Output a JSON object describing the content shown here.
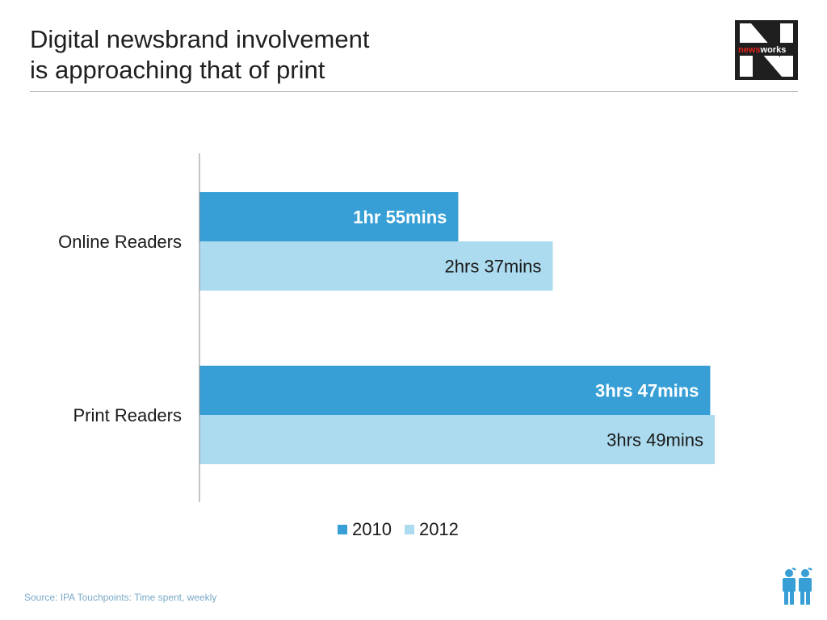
{
  "header": {
    "title_line1": "Digital newsbrand involvement",
    "title_line2": "is approaching that of print"
  },
  "logo": {
    "text_part1": "news",
    "text_part2": "works",
    "icon": "newsworks-n-logo-icon"
  },
  "colors": {
    "series_2010": "#379fd6",
    "series_2012": "#acdaee",
    "logo_bg": "#1f1f1f",
    "logo_accent": "#e2231a",
    "figures": "#379fd6",
    "axis": "#8a8a8a",
    "rule": "#b3b3b3"
  },
  "chart_data": {
    "type": "bar",
    "orientation": "horizontal",
    "categories": [
      "Online Readers",
      "Print Readers"
    ],
    "unit": "minutes per week",
    "series": [
      {
        "name": "2010",
        "values": [
          115,
          227
        ],
        "labels": [
          "1hr 55mins",
          "3hrs 47mins"
        ],
        "label_bold": true,
        "label_color": "#ffffff"
      },
      {
        "name": "2012",
        "values": [
          157,
          229
        ],
        "labels": [
          "2hrs 37mins",
          "3hrs 49mins"
        ],
        "label_bold": false,
        "label_color": "#1a1a1a"
      }
    ],
    "xlim": [
      0,
      245
    ],
    "grid": false,
    "legend_position": "bottom"
  },
  "footer": {
    "source": "Source: IPA Touchpoints: Time spent, weekly",
    "icon": "reading-people-icon"
  }
}
